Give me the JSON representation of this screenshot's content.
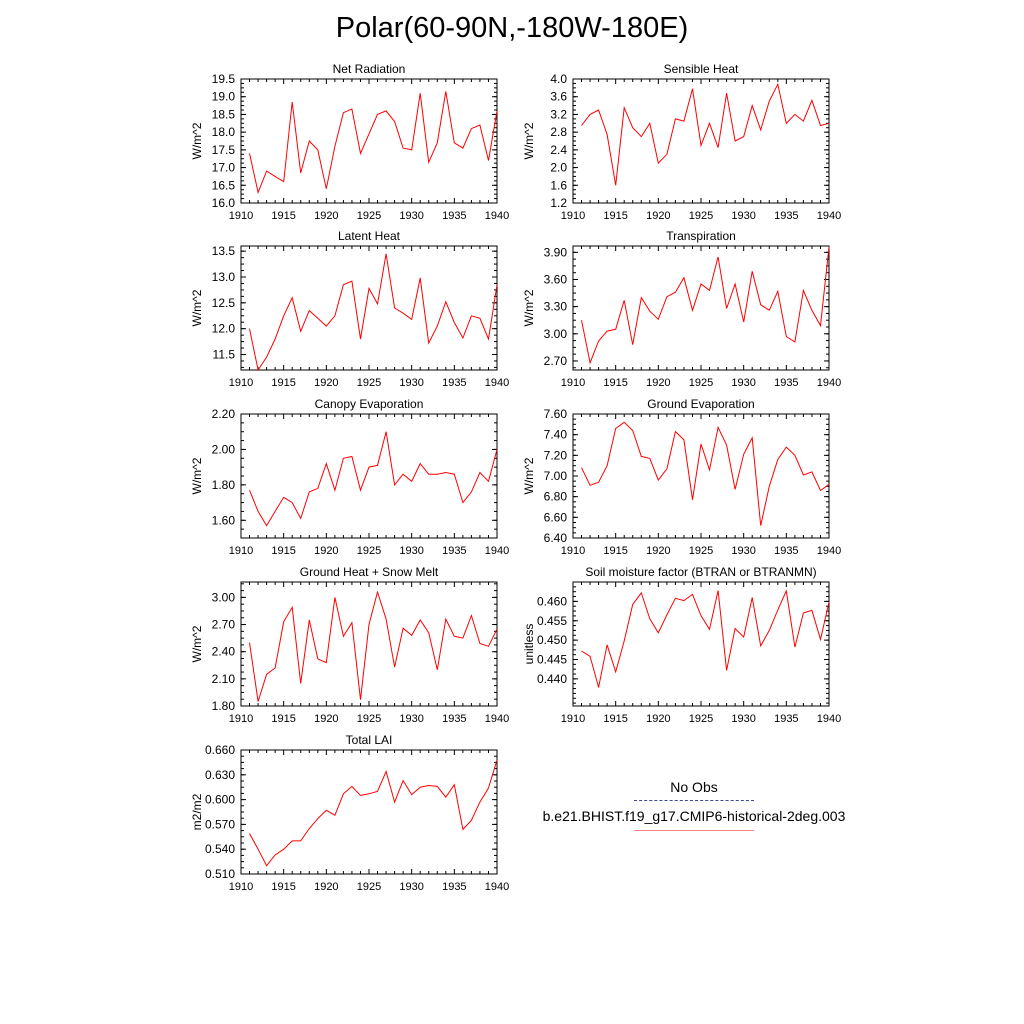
{
  "title": "Polar(60-90N,-180W-180E)",
  "legend": {
    "obs_label": "No Obs",
    "model_label": "b.e21.BHIST.f19_g17.CMIP6-historical-2deg.003",
    "model_color": "#ff0000"
  },
  "chart_data": [
    {
      "type": "line",
      "title": "Net Radiation",
      "ylabel": "W/m^2",
      "xlim": [
        1910,
        1940
      ],
      "ylim": [
        16.0,
        19.5
      ],
      "xticks": [
        1910,
        1915,
        1920,
        1925,
        1930,
        1935,
        1940
      ],
      "yticks": [
        16.0,
        16.5,
        17.0,
        17.5,
        18.0,
        18.5,
        19.0,
        19.5
      ],
      "ytick_labels": [
        "16.0",
        "16.5",
        "17.0",
        "17.5",
        "18.0",
        "18.5",
        "19.0",
        "19.5"
      ],
      "x": [
        1911,
        1912,
        1913,
        1914,
        1915,
        1916,
        1917,
        1918,
        1919,
        1920,
        1921,
        1922,
        1923,
        1924,
        1925,
        1926,
        1927,
        1928,
        1929,
        1930,
        1931,
        1932,
        1933,
        1934,
        1935,
        1936,
        1937,
        1938,
        1939,
        1940
      ],
      "series": [
        {
          "values": [
            17.4,
            16.3,
            16.9,
            16.75,
            16.6,
            18.85,
            16.85,
            17.75,
            17.5,
            16.4,
            17.6,
            18.55,
            18.65,
            17.4,
            17.95,
            18.5,
            18.6,
            18.3,
            17.55,
            17.5,
            19.1,
            17.15,
            17.7,
            19.15,
            17.7,
            17.55,
            18.1,
            18.2,
            17.2,
            18.6
          ],
          "color": "#ff0000"
        }
      ]
    },
    {
      "type": "line",
      "title": "Sensible Heat",
      "ylabel": "W/m^2",
      "xlim": [
        1910,
        1940
      ],
      "ylim": [
        1.2,
        4.0
      ],
      "xticks": [
        1910,
        1915,
        1920,
        1925,
        1930,
        1935,
        1940
      ],
      "yticks": [
        1.2,
        1.6,
        2.0,
        2.4,
        2.8,
        3.2,
        3.6,
        4.0
      ],
      "ytick_labels": [
        "1.2",
        "1.6",
        "2.0",
        "2.4",
        "2.8",
        "3.2",
        "3.6",
        "4.0"
      ],
      "x": [
        1911,
        1912,
        1913,
        1914,
        1915,
        1916,
        1917,
        1918,
        1919,
        1920,
        1921,
        1922,
        1923,
        1924,
        1925,
        1926,
        1927,
        1928,
        1929,
        1930,
        1931,
        1932,
        1933,
        1934,
        1935,
        1936,
        1937,
        1938,
        1939,
        1940
      ],
      "series": [
        {
          "values": [
            2.95,
            3.2,
            3.3,
            2.75,
            1.6,
            3.35,
            2.9,
            2.7,
            3.0,
            2.1,
            2.3,
            3.1,
            3.05,
            3.78,
            2.5,
            3.0,
            2.45,
            3.68,
            2.6,
            2.7,
            3.4,
            2.85,
            3.5,
            3.88,
            3.0,
            3.2,
            3.05,
            3.52,
            2.95,
            3.0
          ],
          "color": "#ff0000"
        }
      ]
    },
    {
      "type": "line",
      "title": "Latent Heat",
      "ylabel": "W/m^2",
      "xlim": [
        1910,
        1940
      ],
      "ylim": [
        11.2,
        13.6
      ],
      "xticks": [
        1910,
        1915,
        1920,
        1925,
        1930,
        1935,
        1940
      ],
      "yticks": [
        11.5,
        12.0,
        12.5,
        13.0,
        13.5
      ],
      "ytick_labels": [
        "11.5",
        "12.0",
        "12.5",
        "13.0",
        "13.5"
      ],
      "x": [
        1911,
        1912,
        1913,
        1914,
        1915,
        1916,
        1917,
        1918,
        1919,
        1920,
        1921,
        1922,
        1923,
        1924,
        1925,
        1926,
        1927,
        1928,
        1929,
        1930,
        1931,
        1932,
        1933,
        1934,
        1935,
        1936,
        1937,
        1938,
        1939,
        1940
      ],
      "series": [
        {
          "values": [
            12.0,
            11.2,
            11.45,
            11.8,
            12.25,
            12.6,
            11.95,
            12.35,
            12.2,
            12.05,
            12.25,
            12.85,
            12.92,
            11.8,
            12.78,
            12.48,
            13.45,
            12.4,
            12.3,
            12.18,
            12.98,
            11.72,
            12.05,
            12.52,
            12.12,
            11.82,
            12.25,
            12.2,
            11.8,
            12.85
          ],
          "color": "#ff0000"
        }
      ]
    },
    {
      "type": "line",
      "title": "Transpiration",
      "ylabel": "W/m^2",
      "xlim": [
        1910,
        1940
      ],
      "ylim": [
        2.6,
        3.97
      ],
      "xticks": [
        1910,
        1915,
        1920,
        1925,
        1930,
        1935,
        1940
      ],
      "yticks": [
        2.7,
        3.0,
        3.3,
        3.6,
        3.9
      ],
      "ytick_labels": [
        "2.70",
        "3.00",
        "3.30",
        "3.60",
        "3.90"
      ],
      "x": [
        1911,
        1912,
        1913,
        1914,
        1915,
        1916,
        1917,
        1918,
        1919,
        1920,
        1921,
        1922,
        1923,
        1924,
        1925,
        1926,
        1927,
        1928,
        1929,
        1930,
        1931,
        1932,
        1933,
        1934,
        1935,
        1936,
        1937,
        1938,
        1939,
        1940
      ],
      "series": [
        {
          "values": [
            3.15,
            2.68,
            2.92,
            3.03,
            3.05,
            3.37,
            2.88,
            3.4,
            3.25,
            3.16,
            3.41,
            3.46,
            3.62,
            3.26,
            3.55,
            3.48,
            3.85,
            3.28,
            3.55,
            3.13,
            3.69,
            3.32,
            3.26,
            3.47,
            2.97,
            2.91,
            3.48,
            3.26,
            3.09,
            3.96
          ],
          "color": "#ff0000"
        }
      ]
    },
    {
      "type": "line",
      "title": "Canopy Evaporation",
      "ylabel": "W/m^2",
      "xlim": [
        1910,
        1940
      ],
      "ylim": [
        1.5,
        2.2
      ],
      "xticks": [
        1910,
        1915,
        1920,
        1925,
        1930,
        1935,
        1940
      ],
      "yticks": [
        1.6,
        1.8,
        2.0,
        2.2
      ],
      "ytick_labels": [
        "1.60",
        "1.80",
        "2.00",
        "2.20"
      ],
      "x": [
        1911,
        1912,
        1913,
        1914,
        1915,
        1916,
        1917,
        1918,
        1919,
        1920,
        1921,
        1922,
        1923,
        1924,
        1925,
        1926,
        1927,
        1928,
        1929,
        1930,
        1931,
        1932,
        1933,
        1934,
        1935,
        1936,
        1937,
        1938,
        1939,
        1940
      ],
      "series": [
        {
          "values": [
            1.77,
            1.65,
            1.57,
            1.65,
            1.73,
            1.7,
            1.61,
            1.76,
            1.78,
            1.92,
            1.77,
            1.95,
            1.96,
            1.77,
            1.9,
            1.91,
            2.1,
            1.8,
            1.86,
            1.82,
            1.92,
            1.86,
            1.86,
            1.87,
            1.86,
            1.7,
            1.76,
            1.87,
            1.82,
            2.0
          ],
          "color": "#ff0000"
        }
      ]
    },
    {
      "type": "line",
      "title": "Ground Evaporation",
      "ylabel": "W/m^2",
      "xlim": [
        1910,
        1940
      ],
      "ylim": [
        6.4,
        7.6
      ],
      "xticks": [
        1910,
        1915,
        1920,
        1925,
        1930,
        1935,
        1940
      ],
      "yticks": [
        6.4,
        6.6,
        6.8,
        7.0,
        7.2,
        7.4,
        7.6
      ],
      "ytick_labels": [
        "6.40",
        "6.60",
        "6.80",
        "7.00",
        "7.20",
        "7.40",
        "7.60"
      ],
      "x": [
        1911,
        1912,
        1913,
        1914,
        1915,
        1916,
        1917,
        1918,
        1919,
        1920,
        1921,
        1922,
        1923,
        1924,
        1925,
        1926,
        1927,
        1928,
        1929,
        1930,
        1931,
        1932,
        1933,
        1934,
        1935,
        1936,
        1937,
        1938,
        1939,
        1940
      ],
      "series": [
        {
          "values": [
            7.08,
            6.91,
            6.94,
            7.1,
            7.46,
            7.52,
            7.44,
            7.19,
            7.17,
            6.96,
            7.07,
            7.43,
            7.35,
            6.77,
            7.31,
            7.06,
            7.47,
            7.3,
            6.87,
            7.21,
            7.37,
            6.52,
            6.9,
            7.16,
            7.28,
            7.2,
            7.01,
            7.04,
            6.86,
            6.92
          ],
          "color": "#ff0000"
        }
      ]
    },
    {
      "type": "line",
      "title": "Ground Heat + Snow Melt",
      "ylabel": "W/m^2",
      "xlim": [
        1910,
        1940
      ],
      "ylim": [
        1.8,
        3.17
      ],
      "xticks": [
        1910,
        1915,
        1920,
        1925,
        1930,
        1935,
        1940
      ],
      "yticks": [
        1.8,
        2.1,
        2.4,
        2.7,
        3.0
      ],
      "ytick_labels": [
        "1.80",
        "2.10",
        "2.40",
        "2.70",
        "3.00"
      ],
      "x": [
        1911,
        1912,
        1913,
        1914,
        1915,
        1916,
        1917,
        1918,
        1919,
        1920,
        1921,
        1922,
        1923,
        1924,
        1925,
        1926,
        1927,
        1928,
        1929,
        1930,
        1931,
        1932,
        1933,
        1934,
        1935,
        1936,
        1937,
        1938,
        1939,
        1940
      ],
      "series": [
        {
          "values": [
            2.5,
            1.85,
            2.15,
            2.22,
            2.73,
            2.89,
            2.05,
            2.75,
            2.32,
            2.28,
            3.0,
            2.57,
            2.72,
            1.87,
            2.7,
            3.06,
            2.76,
            2.23,
            2.66,
            2.58,
            2.75,
            2.61,
            2.2,
            2.76,
            2.57,
            2.55,
            2.8,
            2.49,
            2.46,
            2.65
          ],
          "color": "#ff0000"
        }
      ]
    },
    {
      "type": "line",
      "title": "Soil moisture factor (BTRAN or BTRANMN)",
      "ylabel": "unitless",
      "xlim": [
        1910,
        1940
      ],
      "ylim": [
        0.433,
        0.465
      ],
      "xticks": [
        1910,
        1915,
        1920,
        1925,
        1930,
        1935,
        1940
      ],
      "yticks": [
        0.44,
        0.445,
        0.45,
        0.455,
        0.46
      ],
      "ytick_labels": [
        "0.440",
        "0.445",
        "0.450",
        "0.455",
        "0.460"
      ],
      "x": [
        1911,
        1912,
        1913,
        1914,
        1915,
        1916,
        1917,
        1918,
        1919,
        1920,
        1921,
        1922,
        1923,
        1924,
        1925,
        1926,
        1927,
        1928,
        1929,
        1930,
        1931,
        1932,
        1933,
        1934,
        1935,
        1936,
        1937,
        1938,
        1939,
        1940
      ],
      "series": [
        {
          "values": [
            0.4472,
            0.4458,
            0.4378,
            0.4488,
            0.4418,
            0.4498,
            0.4592,
            0.4622,
            0.4555,
            0.4519,
            0.4565,
            0.4608,
            0.4602,
            0.4618,
            0.4563,
            0.4528,
            0.4628,
            0.4422,
            0.453,
            0.4508,
            0.461,
            0.4485,
            0.4525,
            0.4578,
            0.4627,
            0.4482,
            0.457,
            0.4577,
            0.4502,
            0.4598
          ],
          "color": "#ff0000"
        }
      ]
    },
    {
      "type": "line",
      "title": "Total LAI",
      "ylabel": "m2/m2",
      "xlim": [
        1910,
        1940
      ],
      "ylim": [
        0.51,
        0.66
      ],
      "xticks": [
        1910,
        1915,
        1920,
        1925,
        1930,
        1935,
        1940
      ],
      "yticks": [
        0.51,
        0.54,
        0.57,
        0.6,
        0.63,
        0.66
      ],
      "ytick_labels": [
        "0.510",
        "0.540",
        "0.570",
        "0.600",
        "0.630",
        "0.660"
      ],
      "x": [
        1911,
        1912,
        1913,
        1914,
        1915,
        1916,
        1917,
        1918,
        1919,
        1920,
        1921,
        1922,
        1923,
        1924,
        1925,
        1926,
        1927,
        1928,
        1929,
        1930,
        1931,
        1932,
        1933,
        1934,
        1935,
        1936,
        1937,
        1938,
        1939,
        1940
      ],
      "series": [
        {
          "values": [
            0.559,
            0.54,
            0.52,
            0.533,
            0.54,
            0.55,
            0.55,
            0.565,
            0.577,
            0.587,
            0.581,
            0.607,
            0.616,
            0.605,
            0.607,
            0.61,
            0.634,
            0.597,
            0.623,
            0.606,
            0.615,
            0.617,
            0.616,
            0.603,
            0.618,
            0.564,
            0.575,
            0.597,
            0.614,
            0.648
          ],
          "color": "#ff0000"
        }
      ]
    }
  ]
}
